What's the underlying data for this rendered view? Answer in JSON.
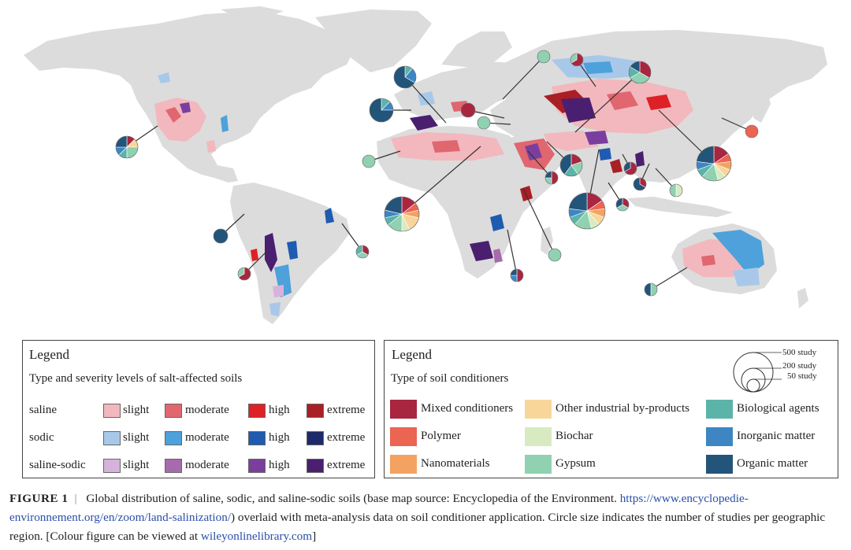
{
  "colors": {
    "land": "#dcdcdc",
    "saline_slight": "#f2b8bd",
    "saline_moderate": "#e06670",
    "saline_high": "#dd2127",
    "saline_extreme": "#a81f25",
    "sodic_slight": "#a8c8ea",
    "sodic_moderate": "#4ea1da",
    "sodic_high": "#1f5bb0",
    "sodic_extreme": "#1c2a6b",
    "ss_slight": "#d7b2dc",
    "ss_moderate": "#a76aad",
    "ss_high": "#7a3f9e",
    "ss_extreme": "#4b1f70",
    "mixed": "#a8263f",
    "polymer": "#ec6452",
    "nano": "#f4a261",
    "industrial": "#f8d69a",
    "biochar": "#d8ebc0",
    "gypsum": "#8fd1b0",
    "biological": "#5cb3a8",
    "inorganic": "#3d86c3",
    "organic": "#235479"
  },
  "legend_left": {
    "title": "Legend",
    "subtitle": "Type and severity levels of salt-affected soils",
    "rows": [
      {
        "label": "saline",
        "levels": [
          "slight",
          "moderate",
          "high",
          "extreme"
        ]
      },
      {
        "label": "sodic",
        "levels": [
          "slight",
          "moderate",
          "high",
          "extreme"
        ]
      },
      {
        "label": "saline-sodic",
        "levels": [
          "slight",
          "moderate",
          "high",
          "extreme"
        ]
      }
    ]
  },
  "legend_right": {
    "title": "Legend",
    "subtitle": "Type of soil conditioners",
    "size_labels": [
      "500 study",
      "200 study",
      "50 study"
    ],
    "items": [
      {
        "label": "Mixed conditioners",
        "color": "#a8263f"
      },
      {
        "label": "Other industrial by-products",
        "color": "#f8d69a"
      },
      {
        "label": "Biological agents",
        "color": "#5cb3a8"
      },
      {
        "label": "Polymer",
        "color": "#ec6452"
      },
      {
        "label": "Biochar",
        "color": "#d8ebc0"
      },
      {
        "label": "Inorganic matter",
        "color": "#3d86c3"
      },
      {
        "label": "Nanomaterials",
        "color": "#f4a261"
      },
      {
        "label": "Gypsum",
        "color": "#8fd1b0"
      },
      {
        "label": "Organic matter",
        "color": "#235479"
      }
    ]
  },
  "caption": {
    "figure_label": "FIGURE 1",
    "separator": "|",
    "text_before_link": "Global distribution of saline, sodic, and saline-sodic soils (base map source: Encyclopedia of the Environment.",
    "link": "https://www.encyclopedie-environnement.org/en/zoom/land-salinization/",
    "text_after_link": ") overlaid with meta-analysis data on soil conditioner application. Circle size indicates the number of studies per geographic region. [Colour figure can be viewed at",
    "link2": "wileyonlinelibrary.com",
    "text_end": "]"
  }
}
